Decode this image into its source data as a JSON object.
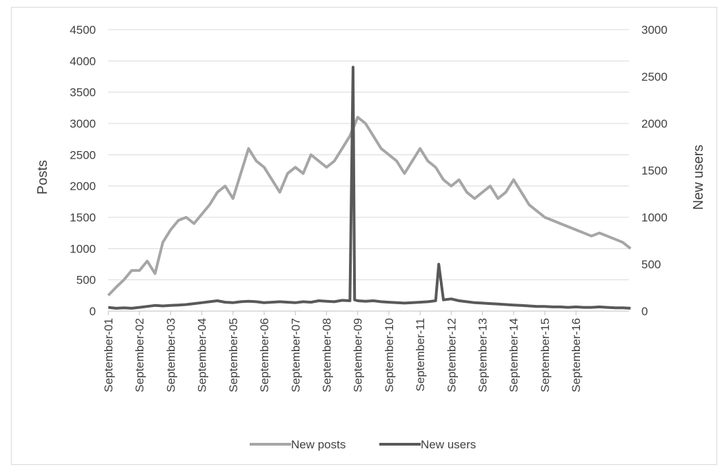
{
  "chart_data": {
    "type": "line",
    "title": "",
    "xlabel": "",
    "ylabel": "Posts",
    "ylabel_right": "New users",
    "ylim": [
      0,
      4500
    ],
    "ylim_right": [
      0,
      3000
    ],
    "yticks": [
      0,
      500,
      1000,
      1500,
      2000,
      2500,
      3000,
      3500,
      4000,
      4500
    ],
    "yticks_right": [
      0,
      500,
      1000,
      1500,
      2000,
      2500,
      3000
    ],
    "categories": [
      "September-01",
      "September-02",
      "September-03",
      "September-04",
      "September-05",
      "September-06",
      "September-07",
      "September-08",
      "September-09",
      "September-10",
      "September-11",
      "September-12",
      "September-13",
      "September-14",
      "September-15",
      "September-16"
    ],
    "grid": true,
    "legend_position": "bottom",
    "colors": {
      "posts": "#a6a6a6",
      "users": "#595959",
      "grid": "#d9d9d9",
      "text": "#404040"
    },
    "series": [
      {
        "name": "New posts",
        "axis": "left",
        "x": [
          0,
          0.25,
          0.5,
          0.75,
          1,
          1.25,
          1.5,
          1.75,
          2,
          2.25,
          2.5,
          2.75,
          3,
          3.25,
          3.5,
          3.75,
          4,
          4.25,
          4.5,
          4.75,
          5,
          5.25,
          5.5,
          5.75,
          6,
          6.25,
          6.5,
          6.75,
          7,
          7.25,
          7.5,
          7.75,
          8,
          8.25,
          8.5,
          8.75,
          9,
          9.25,
          9.5,
          9.75,
          10,
          10.25,
          10.5,
          10.75,
          11,
          11.25,
          11.5,
          11.75,
          12,
          12.25,
          12.5,
          12.75,
          13,
          13.25,
          13.5,
          13.75,
          14,
          14.25,
          14.5,
          14.75,
          15,
          15.25,
          15.5,
          15.75,
          16,
          16.25,
          16.5,
          16.75
        ],
        "values": [
          250,
          380,
          500,
          650,
          650,
          800,
          600,
          1100,
          1300,
          1450,
          1500,
          1400,
          1550,
          1700,
          1900,
          2000,
          1800,
          2200,
          2600,
          2400,
          2300,
          2100,
          1900,
          2200,
          2300,
          2200,
          2500,
          2400,
          2300,
          2400,
          2600,
          2800,
          3100,
          3000,
          2800,
          2600,
          2500,
          2400,
          2200,
          2400,
          2600,
          2400,
          2300,
          2100,
          2000,
          2100,
          1900,
          1800,
          1900,
          2000,
          1800,
          1900,
          2100,
          1900,
          1700,
          1600,
          1500,
          1450,
          1400,
          1350,
          1300,
          1250,
          1200,
          1250,
          1200,
          1150,
          1100,
          1000
        ]
      },
      {
        "name": "New users",
        "axis": "right",
        "x": [
          0,
          0.25,
          0.5,
          0.75,
          1,
          1.25,
          1.5,
          1.75,
          2,
          2.25,
          2.5,
          2.75,
          3,
          3.25,
          3.5,
          3.75,
          4,
          4.25,
          4.5,
          4.75,
          5,
          5.25,
          5.5,
          5.75,
          6,
          6.25,
          6.5,
          6.75,
          7,
          7.25,
          7.5,
          7.75,
          7.85,
          7.9,
          8,
          8.25,
          8.5,
          8.75,
          9,
          9.25,
          9.5,
          9.75,
          10,
          10.25,
          10.5,
          10.6,
          10.75,
          11,
          11.25,
          11.5,
          11.75,
          12,
          12.25,
          12.5,
          12.75,
          13,
          13.25,
          13.5,
          13.75,
          14,
          14.25,
          14.5,
          14.75,
          15,
          15.25,
          15.5,
          15.75,
          16,
          16.25,
          16.5,
          16.75
        ],
        "values": [
          40,
          30,
          35,
          30,
          40,
          50,
          60,
          55,
          60,
          65,
          70,
          80,
          90,
          100,
          110,
          95,
          90,
          100,
          105,
          100,
          90,
          95,
          100,
          95,
          90,
          100,
          95,
          110,
          105,
          100,
          115,
          110,
          2600,
          120,
          110,
          105,
          110,
          100,
          95,
          90,
          85,
          90,
          95,
          100,
          110,
          500,
          120,
          130,
          110,
          100,
          90,
          85,
          80,
          75,
          70,
          65,
          60,
          55,
          50,
          50,
          45,
          45,
          40,
          45,
          40,
          40,
          45,
          40,
          35,
          35,
          30
        ]
      }
    ]
  }
}
